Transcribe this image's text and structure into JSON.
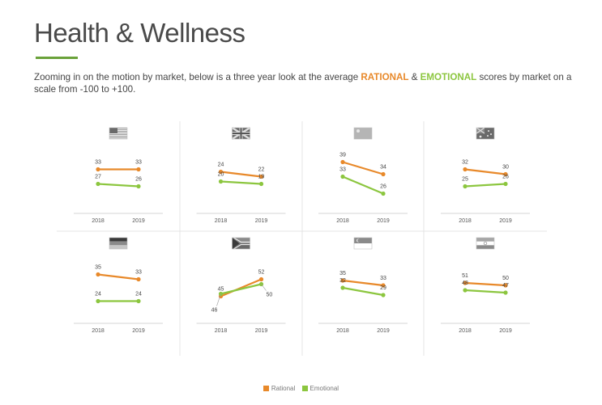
{
  "page": {
    "title": "Health & Wellness",
    "intro_before": "Zooming in on the motion by market, below is a three year look at the average ",
    "intro_rational": "RATIONAL",
    "intro_mid": " & ",
    "intro_emotional": "EMOTIONAL",
    "intro_after": " scores by market on a scale from -100 to +100."
  },
  "colors": {
    "rational": "#e8892a",
    "emotional": "#8cc63f",
    "accent": "#6aa23a"
  },
  "chart_data": {
    "type": "line",
    "x": [
      "2018",
      "2019"
    ],
    "ylim": [
      -100,
      100
    ],
    "legend": [
      "Rational",
      "Emotional"
    ],
    "legend_position": "bottom-center",
    "grid": false,
    "panels": [
      {
        "flag": "usa-flag-icon",
        "series": [
          {
            "name": "Rational",
            "values": [
              33,
              33
            ]
          },
          {
            "name": "Emotional",
            "values": [
              27,
              26
            ]
          }
        ]
      },
      {
        "flag": "uk-flag-icon",
        "series": [
          {
            "name": "Rational",
            "values": [
              24,
              22
            ]
          },
          {
            "name": "Emotional",
            "values": [
              20,
              19
            ]
          }
        ]
      },
      {
        "flag": "china-flag-icon",
        "series": [
          {
            "name": "Rational",
            "values": [
              39,
              34
            ]
          },
          {
            "name": "Emotional",
            "values": [
              33,
              26
            ]
          }
        ]
      },
      {
        "flag": "australia-flag-icon",
        "series": [
          {
            "name": "Rational",
            "values": [
              32,
              30
            ]
          },
          {
            "name": "Emotional",
            "values": [
              25,
              26
            ]
          }
        ]
      },
      {
        "flag": "germany-flag-icon",
        "series": [
          {
            "name": "Rational",
            "values": [
              35,
              33
            ]
          },
          {
            "name": "Emotional",
            "values": [
              24,
              24
            ]
          }
        ]
      },
      {
        "flag": "south-africa-flag-icon",
        "series": [
          {
            "name": "Rational",
            "values": [
              45,
              52
            ]
          },
          {
            "name": "Emotional",
            "values": [
              46,
              50
            ]
          }
        ]
      },
      {
        "flag": "singapore-flag-icon",
        "series": [
          {
            "name": "Rational",
            "values": [
              35,
              33
            ]
          },
          {
            "name": "Emotional",
            "values": [
              32,
              29
            ]
          }
        ]
      },
      {
        "flag": "india-flag-icon",
        "series": [
          {
            "name": "Rational",
            "values": [
              51,
              50
            ]
          },
          {
            "name": "Emotional",
            "values": [
              48,
              47
            ]
          }
        ]
      }
    ]
  }
}
